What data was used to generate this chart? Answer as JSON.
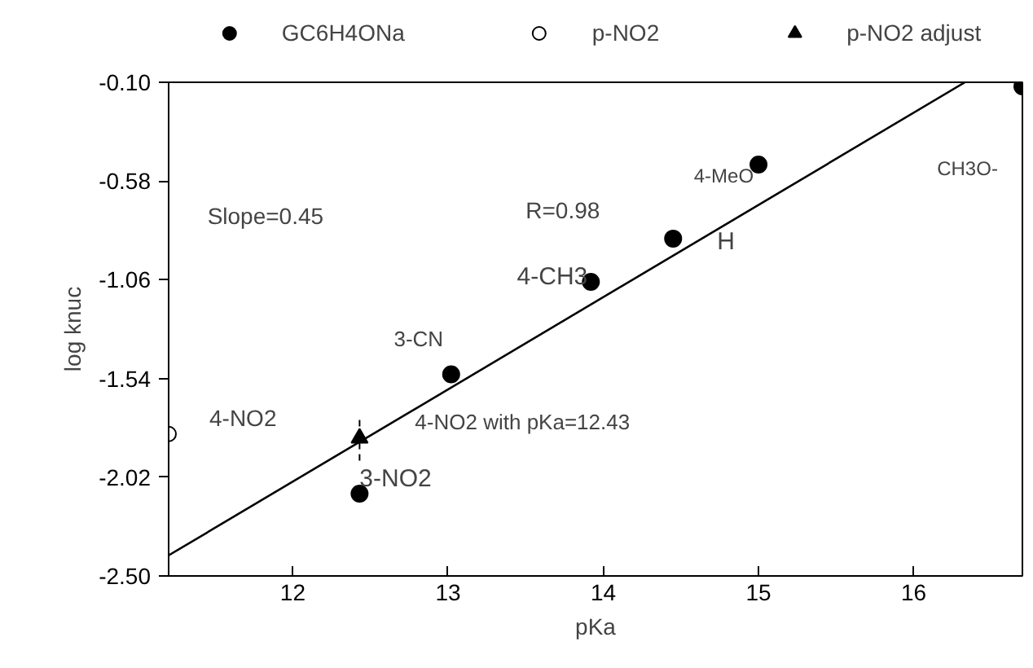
{
  "chart_data": {
    "type": "scatter",
    "xlabel": "pKa",
    "ylabel": "log knuc",
    "xlim": [
      11.2,
      16.7
    ],
    "xticks": [
      12,
      13,
      14,
      15,
      16
    ],
    "ylim": [
      -2.5,
      -0.1
    ],
    "yticks": [
      {
        "value": -2.5,
        "label": "-2.50"
      },
      {
        "value": -2.02,
        "label": "-2.02"
      },
      {
        "value": -1.54,
        "label": "-1.54"
      },
      {
        "value": -1.06,
        "label": "-1.06"
      },
      {
        "value": -0.58,
        "label": "-0.58"
      },
      {
        "value": -0.1,
        "label": "-0.10"
      }
    ],
    "grid": false,
    "legend": "top",
    "series": [
      {
        "name": "GC6H4ONa",
        "marker": "circle",
        "color": "#000000",
        "x": [
          12.43,
          13.02,
          13.92,
          14.45,
          15.0,
          16.7
        ],
        "values": [
          -2.1,
          -1.52,
          -1.07,
          -0.86,
          -0.5,
          -0.12
        ]
      },
      {
        "name": "p-NO2",
        "marker": "circle_open",
        "color": "#000000",
        "x": [
          11.2
        ],
        "values": [
          -1.81
        ]
      },
      {
        "name": "p-NO2 adjust",
        "marker": "triangle",
        "color": "#000000",
        "x": [
          12.43
        ],
        "values": [
          -1.83
        ],
        "errors": [
          0.11
        ]
      },
      {
        "type": "line",
        "marker": "none",
        "line_style": "solid",
        "color": "#000000",
        "x": [
          11.2,
          16.33
        ],
        "values": [
          -2.4,
          -0.1
        ]
      }
    ],
    "annotations": [
      {
        "text": "4-MeO",
        "x": 15.0,
        "y": -0.5
      },
      "CH3O-",
      {
        "text": "H",
        "x": 14.45,
        "y": -0.86
      },
      {
        "text": "4-CH3",
        "x": 13.92,
        "y": -1.07
      },
      {
        "text": "3-CN",
        "x": 13.02,
        "y": -1.52
      },
      {
        "text": "4-NO2",
        "x": 11.2,
        "y": -1.81
      },
      {
        "text": "4-NO2 with pKa=12.43",
        "x": 12.43,
        "y": -1.83
      },
      {
        "text": "3-NO2",
        "x": 12.43,
        "y": -2.1
      },
      "Slope=0.45",
      "R=0.98"
    ]
  }
}
